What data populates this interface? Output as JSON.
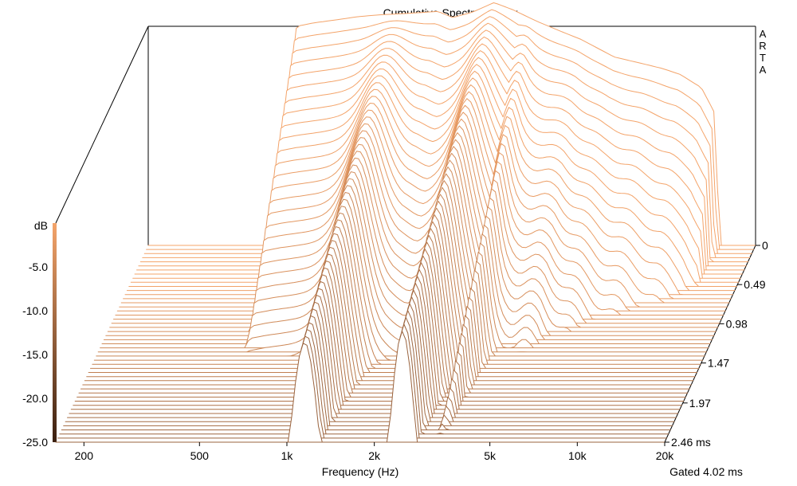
{
  "chart_data": {
    "type": "waterfall",
    "title": "Cumulative Spectral Decay",
    "brand": "ARTA",
    "xlabel": "Frequency (Hz)",
    "xscale": "log",
    "xlim": [
      160,
      20000
    ],
    "x_ticks": [
      200,
      500,
      1000,
      2000,
      5000,
      10000,
      20000
    ],
    "x_tick_labels": [
      "200",
      "500",
      "1k",
      "2k",
      "5k",
      "10k",
      "20k"
    ],
    "zlabel": "dB",
    "zlim": [
      -25,
      0
    ],
    "z_ticks": [
      -5,
      -10,
      -15,
      -20,
      -25
    ],
    "z_tick_labels": [
      "-5.0",
      "-10.0",
      "-15.0",
      "-20.0",
      "-25.0"
    ],
    "time_unit": "ms",
    "time_ticks": [
      0,
      0.49,
      0.98,
      1.47,
      1.97,
      2.46
    ],
    "time_tick_labels": [
      "0",
      "0.49",
      "0.98",
      "1.47",
      "1.97",
      "2.46 ms"
    ],
    "slice_count": 49,
    "gate_note": "Gated 4.02 ms",
    "colorbar": {
      "top_color": "#f4a46a",
      "bottom_color": "#3b2010"
    },
    "slices_model": {
      "first_slice_points": [
        [
          500,
          -5.0
        ],
        [
          520,
          0.0
        ],
        [
          600,
          0.4
        ],
        [
          700,
          0.7
        ],
        [
          850,
          1.1
        ],
        [
          1000,
          1.3
        ],
        [
          1300,
          1.5
        ],
        [
          1600,
          1.7
        ],
        [
          1800,
          1.0
        ],
        [
          2100,
          1.6
        ],
        [
          2500,
          2.7
        ],
        [
          2900,
          1.9
        ],
        [
          3500,
          0.6
        ],
        [
          4200,
          -0.5
        ],
        [
          5000,
          -1.5
        ],
        [
          6500,
          -3.5
        ],
        [
          8000,
          -4.2
        ],
        [
          9500,
          -4.8
        ],
        [
          11000,
          -5.5
        ],
        [
          13000,
          -7.0
        ],
        [
          14500,
          -10.0
        ],
        [
          15000,
          -25.0
        ]
      ],
      "resonance_hz": [
        1150,
        2500,
        3300
      ],
      "decay_shape": "broadband energy decays fastest; resonances near 1.2 kHz and 2.5 kHz linger to 2.46 ms"
    }
  }
}
